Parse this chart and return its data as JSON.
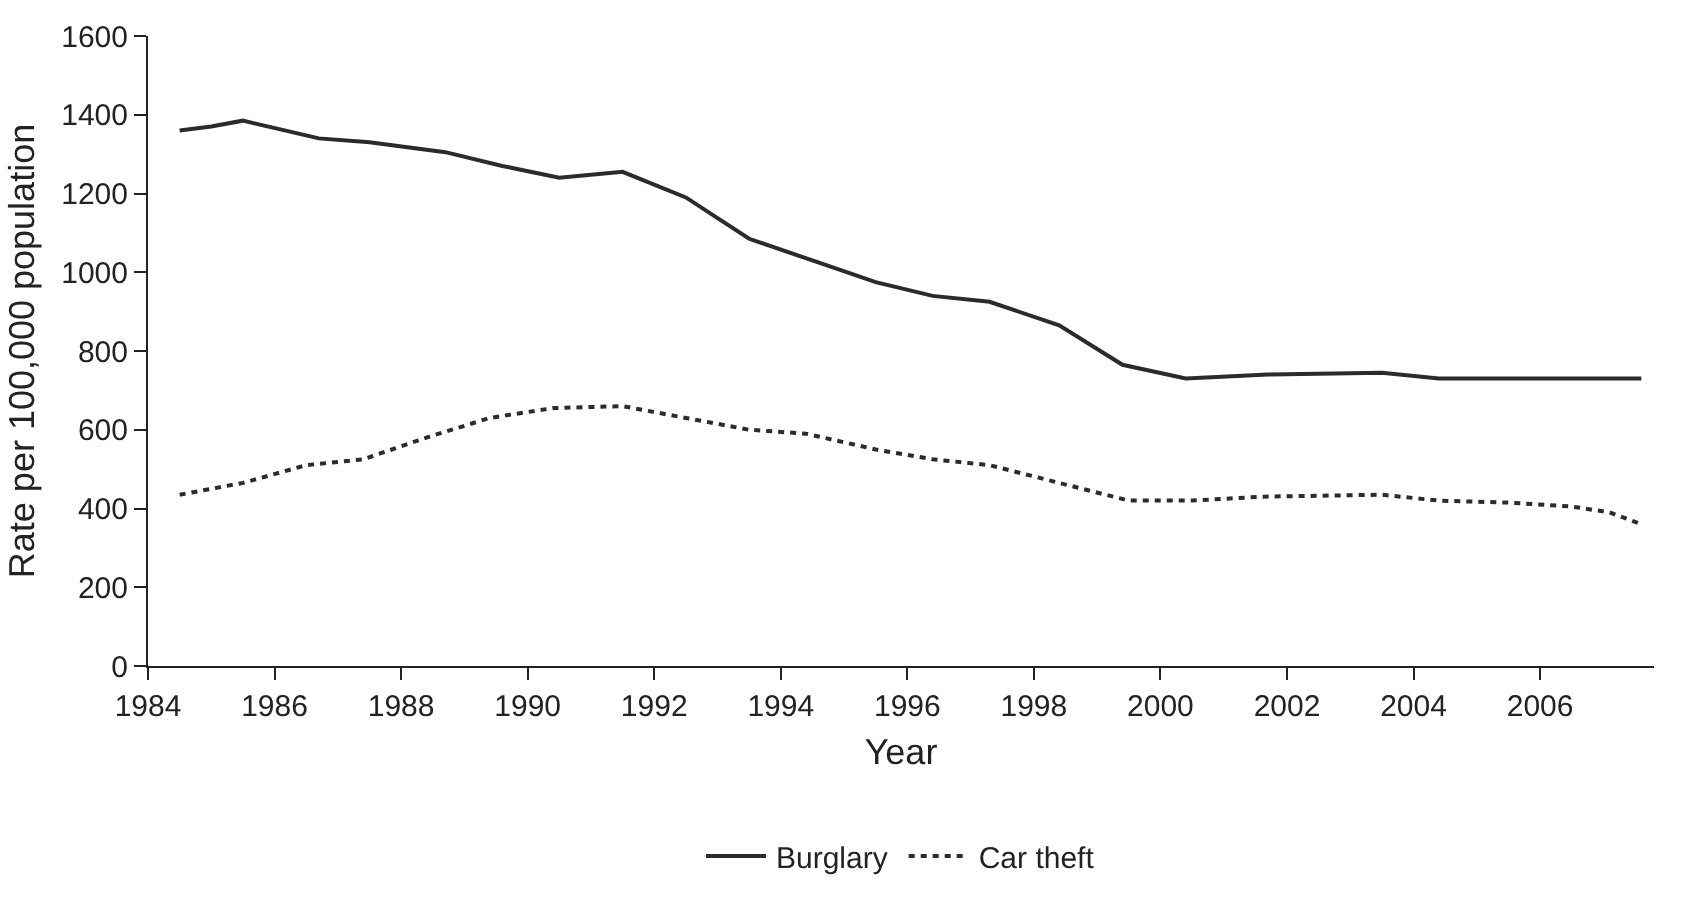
{
  "chart_data": {
    "type": "line",
    "xlabel": "Year",
    "ylabel": "Rate per 100,000 population",
    "xlim": [
      1984,
      2007.8
    ],
    "xticks": [
      1984,
      1986,
      1988,
      1990,
      1992,
      1994,
      1996,
      1998,
      2000,
      2002,
      2004,
      2006
    ],
    "ylim": [
      0,
      1600
    ],
    "yticks": [
      0,
      200,
      400,
      600,
      800,
      1000,
      1200,
      1400,
      1600
    ],
    "legend": "bottom",
    "marker": "none",
    "series": [
      {
        "name": "Burglary",
        "color": "#2b2b2b",
        "line_style": "solid",
        "x": [
          1984.5,
          1985,
          1985.5,
          1986.7,
          1987.5,
          1988.7,
          1989.6,
          1990.5,
          1991.5,
          1992.5,
          1993.5,
          1994.5,
          1995.5,
          1996.4,
          1997.3,
          1998.4,
          1999.4,
          2000.4,
          2001.7,
          2003.5,
          2004.4,
          2007.6
        ],
        "values": [
          1360,
          1370,
          1385,
          1340,
          1330,
          1305,
          1270,
          1240,
          1255,
          1190,
          1085,
          1030,
          975,
          940,
          925,
          865,
          765,
          730,
          740,
          745,
          730,
          730
        ]
      },
      {
        "name": "Car theft",
        "color": "#2b2b2b",
        "line_style": "dotted",
        "x": [
          1984.5,
          1985.5,
          1986.5,
          1987.4,
          1988.4,
          1989.4,
          1990.4,
          1991.5,
          1992.5,
          1993.5,
          1994.4,
          1995.5,
          1996.4,
          1997.3,
          1998.4,
          1999.5,
          2000.5,
          2001.6,
          2003.5,
          2004.4,
          2005.5,
          2006.5,
          2007.1,
          2007.6
        ],
        "values": [
          435,
          465,
          510,
          525,
          580,
          630,
          655,
          660,
          630,
          600,
          590,
          550,
          525,
          510,
          465,
          420,
          420,
          430,
          435,
          420,
          415,
          405,
          390,
          360
        ]
      }
    ]
  }
}
